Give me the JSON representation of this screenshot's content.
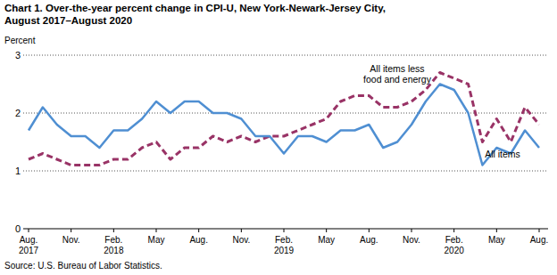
{
  "chart_data": {
    "type": "line",
    "title": [
      "Chart 1. Over-the-year percent change in CPI-U, New York-Newark-Jersey City,",
      "August 2017–August 2020"
    ],
    "y_label": "Percent",
    "source": "Source: U.S. Bureau of Labor Statistics.",
    "categories": [
      "Aug. 2017",
      null,
      null,
      "Nov.",
      null,
      null,
      "Feb. 2018",
      null,
      null,
      "May",
      null,
      null,
      "Aug.",
      null,
      null,
      "Nov.",
      null,
      null,
      "Feb. 2019",
      null,
      null,
      "May",
      null,
      null,
      "Aug.",
      null,
      null,
      "Nov.",
      null,
      null,
      "Feb. 2020",
      null,
      null,
      "May",
      null,
      null,
      "Aug."
    ],
    "series": [
      {
        "name": "All items",
        "color": "#4f8fd2",
        "line_style": "solid",
        "values": [
          1.7,
          2.1,
          1.8,
          1.6,
          1.6,
          1.4,
          1.7,
          1.7,
          1.9,
          2.2,
          2.0,
          2.2,
          2.2,
          2.0,
          2.0,
          1.9,
          1.6,
          1.6,
          1.3,
          1.6,
          1.6,
          1.5,
          1.7,
          1.7,
          1.8,
          1.4,
          1.5,
          1.8,
          2.2,
          2.5,
          2.4,
          2.0,
          1.1,
          1.4,
          1.3,
          1.7,
          1.4
        ]
      },
      {
        "name": "All items less food and energy",
        "color": "#993366",
        "line_style": "dashed",
        "values": [
          1.2,
          1.3,
          1.2,
          1.1,
          1.1,
          1.1,
          1.2,
          1.2,
          1.4,
          1.5,
          1.2,
          1.4,
          1.4,
          1.6,
          1.5,
          1.6,
          1.5,
          1.6,
          1.6,
          1.7,
          1.8,
          1.9,
          2.2,
          2.3,
          2.3,
          2.1,
          2.1,
          2.2,
          2.4,
          2.7,
          2.6,
          2.5,
          1.5,
          1.9,
          1.5,
          2.1,
          1.8
        ]
      }
    ],
    "annotations": [
      {
        "lines": [
          "All items less",
          "food and energy"
        ]
      },
      {
        "lines": [
          "All items"
        ]
      }
    ],
    "ylim": [
      0,
      3
    ],
    "yticks": [
      0,
      1,
      2,
      3
    ],
    "grid": true
  }
}
